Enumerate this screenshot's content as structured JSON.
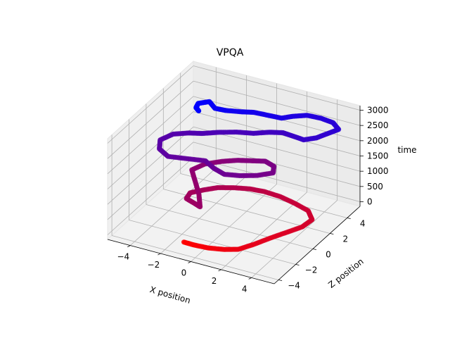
{
  "chart_data": {
    "type": "scatter",
    "projection": "3d",
    "title": "VPQA",
    "xlabel": "X position",
    "ylabel": "Z position",
    "zlabel": "time",
    "xlim": [
      -5.5,
      5.5
    ],
    "ylim": [
      -4.5,
      5.5
    ],
    "zlim": [
      -150,
      3150
    ],
    "xticks": [
      -4,
      -2,
      0,
      2,
      4
    ],
    "yticks": [
      -4,
      -2,
      0,
      2,
      4
    ],
    "zticks": [
      0,
      500,
      1000,
      1500,
      2000,
      2500,
      3000
    ],
    "grid": true,
    "color_map": {
      "low": "#ff0000",
      "high": "#0000ff",
      "encodes": "time"
    },
    "series": [
      {
        "marker": "circle",
        "points": [
          [
            -1.2,
            -3.2,
            0
          ],
          [
            -0.4,
            -3.4,
            60
          ],
          [
            0.6,
            -3.5,
            120
          ],
          [
            1.6,
            -3.4,
            180
          ],
          [
            2.4,
            -3.2,
            240
          ],
          [
            3.0,
            -2.5,
            300
          ],
          [
            3.6,
            -1.6,
            360
          ],
          [
            4.2,
            -0.8,
            420
          ],
          [
            4.8,
            0.0,
            480
          ],
          [
            5.0,
            0.8,
            540
          ],
          [
            4.4,
            1.4,
            600
          ],
          [
            3.4,
            1.6,
            660
          ],
          [
            2.4,
            1.7,
            720
          ],
          [
            1.4,
            1.6,
            780
          ],
          [
            0.6,
            1.3,
            840
          ],
          [
            -0.2,
            0.8,
            900
          ],
          [
            -0.9,
            0.2,
            960
          ],
          [
            -1.4,
            -0.6,
            1020
          ],
          [
            -1.8,
            -1.4,
            1080
          ],
          [
            -1.6,
            -2.2,
            1120
          ],
          [
            -0.8,
            -2.6,
            1160
          ],
          [
            -0.3,
            -2.9,
            1200
          ],
          [
            -1.0,
            -1.8,
            1240
          ],
          [
            -1.8,
            -0.8,
            1280
          ],
          [
            -2.6,
            0.2,
            1320
          ],
          [
            -2.2,
            1.0,
            1360
          ],
          [
            -1.4,
            1.6,
            1400
          ],
          [
            -0.6,
            2.0,
            1440
          ],
          [
            0.2,
            2.2,
            1480
          ],
          [
            1.0,
            2.4,
            1520
          ],
          [
            1.8,
            2.0,
            1560
          ],
          [
            2.2,
            1.2,
            1600
          ],
          [
            1.6,
            0.4,
            1640
          ],
          [
            0.8,
            -0.2,
            1680
          ],
          [
            0.0,
            -0.6,
            1720
          ],
          [
            -0.8,
            -0.4,
            1760
          ],
          [
            -1.6,
            0.0,
            1800
          ],
          [
            -2.6,
            -0.4,
            1840
          ],
          [
            -3.6,
            -0.8,
            1880
          ],
          [
            -4.4,
            -0.4,
            1920
          ],
          [
            -4.8,
            0.4,
            1960
          ],
          [
            -4.4,
            1.2,
            2000
          ],
          [
            -3.6,
            1.6,
            2040
          ],
          [
            -2.8,
            1.8,
            2080
          ],
          [
            -2.0,
            2.2,
            2120
          ],
          [
            -1.0,
            2.6,
            2160
          ],
          [
            0.0,
            2.8,
            2200
          ],
          [
            0.8,
            3.2,
            2240
          ],
          [
            1.6,
            3.4,
            2280
          ],
          [
            2.4,
            3.2,
            2320
          ],
          [
            3.2,
            3.0,
            2360
          ],
          [
            3.8,
            3.4,
            2400
          ],
          [
            4.2,
            4.0,
            2440
          ],
          [
            4.6,
            4.6,
            2480
          ],
          [
            4.0,
            5.0,
            2520
          ],
          [
            3.2,
            5.0,
            2560
          ],
          [
            2.4,
            4.8,
            2600
          ],
          [
            1.8,
            4.2,
            2640
          ],
          [
            1.4,
            3.6,
            2680
          ],
          [
            0.6,
            3.4,
            2720
          ],
          [
            -0.2,
            3.2,
            2760
          ],
          [
            -0.8,
            2.8,
            2800
          ],
          [
            -1.6,
            2.4,
            2840
          ],
          [
            -2.2,
            2.2,
            2880
          ],
          [
            -2.8,
            2.6,
            2920
          ],
          [
            -3.2,
            2.0,
            2960
          ],
          [
            -3.0,
            1.4,
            3000
          ],
          [
            -2.6,
            1.0,
            3050
          ]
        ]
      }
    ]
  }
}
